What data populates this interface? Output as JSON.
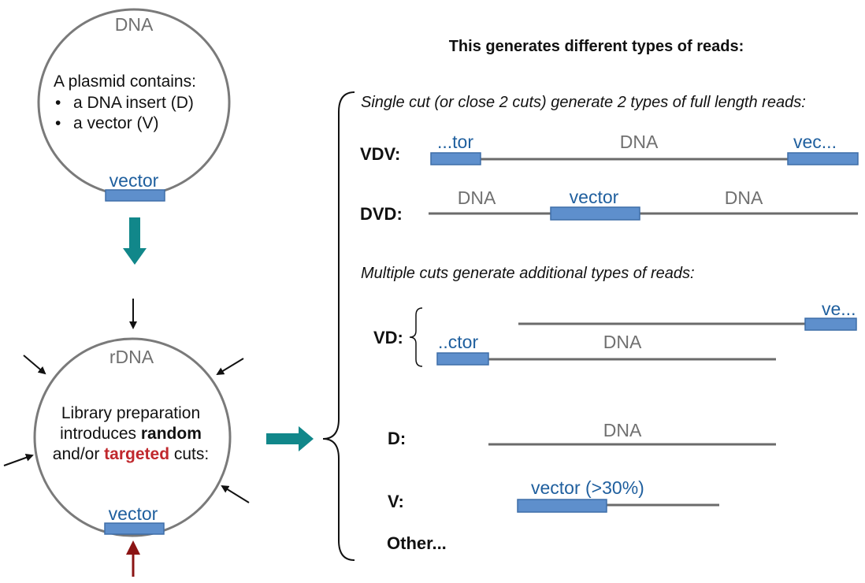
{
  "top_plasmid": {
    "title": "DNA",
    "intro": "A plasmid contains:",
    "bullets": [
      "a DNA insert (D)",
      "a vector (V)"
    ],
    "vector_label": "vector"
  },
  "bottom_plasmid": {
    "title": "rDNA",
    "line1": "Library preparation",
    "line2_prefix": "introduces ",
    "line2_bold": "random",
    "line3_prefix": "and/or ",
    "line3_red": "targeted",
    "line3_suffix": " cuts:",
    "vector_label": "vector"
  },
  "right": {
    "heading": "This generates different types of reads:",
    "single_cut_note": "Single cut (or close 2 cuts) generate 2 types of full length reads:",
    "multi_cut_note": "Multiple cuts generate additional types of reads:",
    "reads": {
      "vdv": {
        "label": "VDV:",
        "left": "...tor",
        "mid": "DNA",
        "right": "vec..."
      },
      "dvd": {
        "label": "DVD:",
        "left": "DNA",
        "mid": "vector",
        "right": "DNA"
      },
      "vd": {
        "label": "VD:",
        "top_right": "ve...",
        "bottom_left": "..ctor",
        "bottom_mid": "DNA"
      },
      "d": {
        "label": "D:",
        "mid": "DNA"
      },
      "v": {
        "label": "V:",
        "vector": "vector (>30%)"
      },
      "other": {
        "label": "Other..."
      }
    }
  },
  "colors": {
    "teal_arrow": "#11878a",
    "red_arrow": "#8b1414",
    "vector_fill": "#5e8fcc",
    "vector_text": "#1f5f9e"
  }
}
